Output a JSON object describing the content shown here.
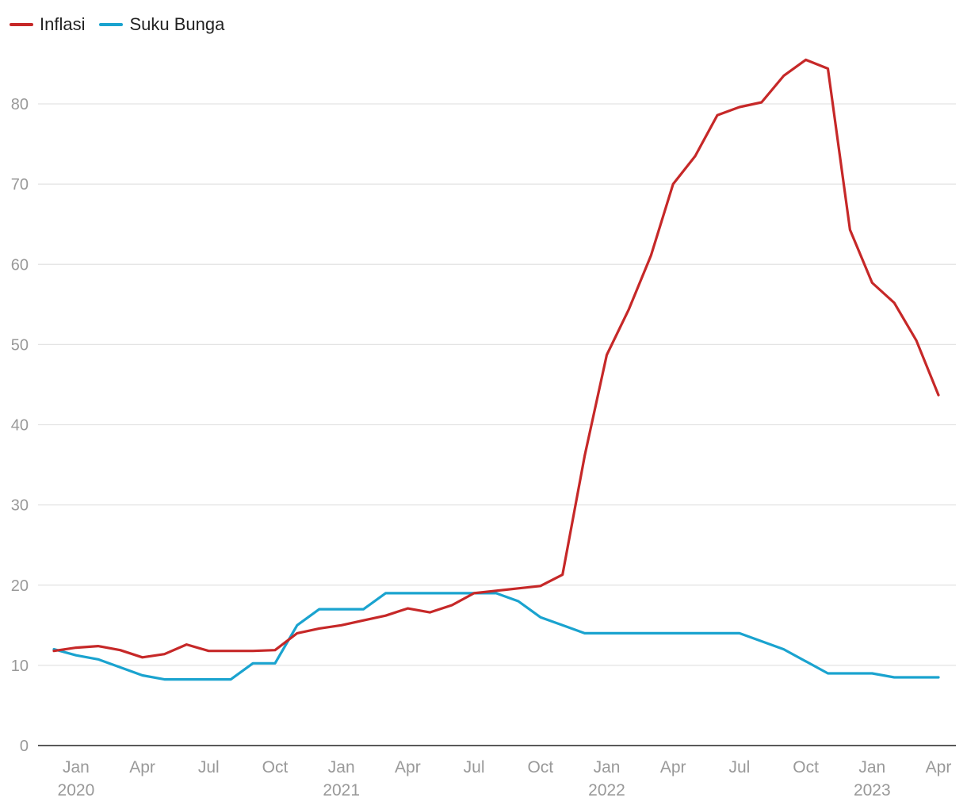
{
  "chart_data": {
    "type": "line",
    "title": "",
    "xlabel": "",
    "ylabel": "",
    "ylim": [
      0,
      85
    ],
    "yticks": [
      0,
      10,
      20,
      30,
      40,
      50,
      60,
      70,
      80
    ],
    "grid": true,
    "legend_position": "top-left",
    "x": [
      "2019-12",
      "2020-01",
      "2020-02",
      "2020-03",
      "2020-04",
      "2020-05",
      "2020-06",
      "2020-07",
      "2020-08",
      "2020-09",
      "2020-10",
      "2020-11",
      "2020-12",
      "2021-01",
      "2021-02",
      "2021-03",
      "2021-04",
      "2021-05",
      "2021-06",
      "2021-07",
      "2021-08",
      "2021-09",
      "2021-10",
      "2021-11",
      "2021-12",
      "2022-01",
      "2022-02",
      "2022-03",
      "2022-04",
      "2022-05",
      "2022-06",
      "2022-07",
      "2022-08",
      "2022-09",
      "2022-10",
      "2022-11",
      "2022-12",
      "2023-01",
      "2023-02",
      "2023-03",
      "2023-04"
    ],
    "x_tick_labels": [
      {
        "month": "2020-01",
        "label": "Jan",
        "year": "2020"
      },
      {
        "month": "2020-04",
        "label": "Apr",
        "year": ""
      },
      {
        "month": "2020-07",
        "label": "Jul",
        "year": ""
      },
      {
        "month": "2020-10",
        "label": "Oct",
        "year": ""
      },
      {
        "month": "2021-01",
        "label": "Jan",
        "year": "2021"
      },
      {
        "month": "2021-04",
        "label": "Apr",
        "year": ""
      },
      {
        "month": "2021-07",
        "label": "Jul",
        "year": ""
      },
      {
        "month": "2021-10",
        "label": "Oct",
        "year": ""
      },
      {
        "month": "2022-01",
        "label": "Jan",
        "year": "2022"
      },
      {
        "month": "2022-04",
        "label": "Apr",
        "year": ""
      },
      {
        "month": "2022-07",
        "label": "Jul",
        "year": ""
      },
      {
        "month": "2022-10",
        "label": "Oct",
        "year": ""
      },
      {
        "month": "2023-01",
        "label": "Jan",
        "year": "2023"
      },
      {
        "month": "2023-04",
        "label": "Apr",
        "year": ""
      }
    ],
    "series": [
      {
        "name": "Inflasi",
        "color": "#c62828",
        "values": [
          11.8,
          12.2,
          12.4,
          11.9,
          11.0,
          11.4,
          12.6,
          11.8,
          11.8,
          11.8,
          11.9,
          14.0,
          14.6,
          15.0,
          15.6,
          16.2,
          17.1,
          16.6,
          17.5,
          19.0,
          19.3,
          19.6,
          19.9,
          21.3,
          36.1,
          48.7,
          54.4,
          61.1,
          70.0,
          73.5,
          78.6,
          79.6,
          80.2,
          83.5,
          85.5,
          84.4,
          64.3,
          57.7,
          55.2,
          50.5,
          43.7
        ]
      },
      {
        "name": "Suku Bunga",
        "color": "#1aa3cf",
        "values": [
          12.0,
          11.25,
          10.75,
          9.75,
          8.75,
          8.25,
          8.25,
          8.25,
          8.25,
          10.25,
          10.25,
          15.0,
          17.0,
          17.0,
          17.0,
          19.0,
          19.0,
          19.0,
          19.0,
          19.0,
          19.0,
          18.0,
          16.0,
          15.0,
          14.0,
          14.0,
          14.0,
          14.0,
          14.0,
          14.0,
          14.0,
          14.0,
          13.0,
          12.0,
          10.5,
          9.0,
          9.0,
          9.0,
          8.5,
          8.5,
          8.5
        ]
      }
    ]
  }
}
